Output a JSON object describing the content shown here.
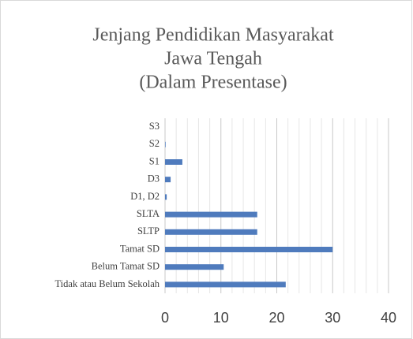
{
  "chart_data": {
    "type": "hbar",
    "title_lines": [
      "Jenjang Pendidikan Masyarakat",
      "Jawa Tengah",
      "(Dalam Presentase)"
    ],
    "categories": [
      "S3",
      "S2",
      "S1",
      "D3",
      "D1, D2",
      "SLTA",
      "SLTP",
      "Tamat SD",
      "Belum Tamat SD",
      "Tidak atau Belum Sekolah"
    ],
    "values": [
      0,
      0.1,
      3.1,
      1.0,
      0.3,
      16.5,
      16.5,
      30,
      10.5,
      21.6
    ],
    "color": "#4f7bbd",
    "xlim": [
      0,
      40
    ],
    "xticks": [
      0,
      10,
      20,
      30,
      40
    ],
    "minor_xticks": [
      2,
      4,
      6,
      8,
      12,
      14,
      16,
      18,
      22,
      24,
      26,
      28,
      32,
      34,
      36,
      38
    ],
    "grid": true
  }
}
